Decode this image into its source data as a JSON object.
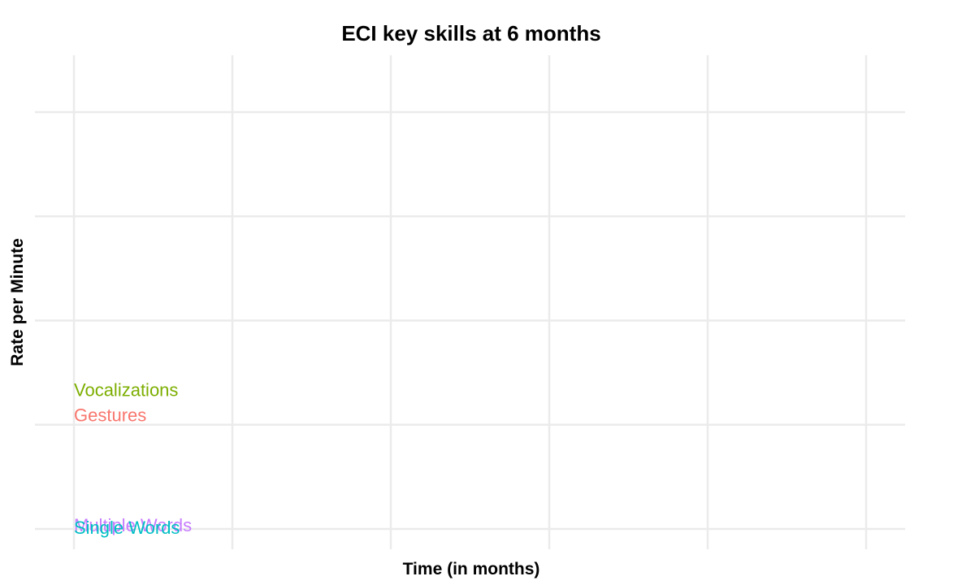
{
  "chart_data": {
    "type": "scatter",
    "title": "ECI key skills at 6 months",
    "xlabel": "Time (in months)",
    "ylabel": "Rate per Minute",
    "xlim": [
      6,
      11.5
    ],
    "ylim": [
      -0.05,
      2.1
    ],
    "grid": true,
    "legend": "none",
    "series": [
      {
        "name": "Vocalizations",
        "color": "#7CAE00",
        "x": [
          6
        ],
        "y": [
          0.66
        ]
      },
      {
        "name": "Gestures",
        "color": "#F8766D",
        "x": [
          6
        ],
        "y": [
          0.54
        ]
      },
      {
        "name": "Multiple Words",
        "color": "#C77CFF",
        "x": [
          6
        ],
        "y": [
          0.01
        ]
      },
      {
        "name": "Single Words",
        "color": "#00BFC4",
        "x": [
          6
        ],
        "y": [
          0.0
        ]
      }
    ]
  }
}
